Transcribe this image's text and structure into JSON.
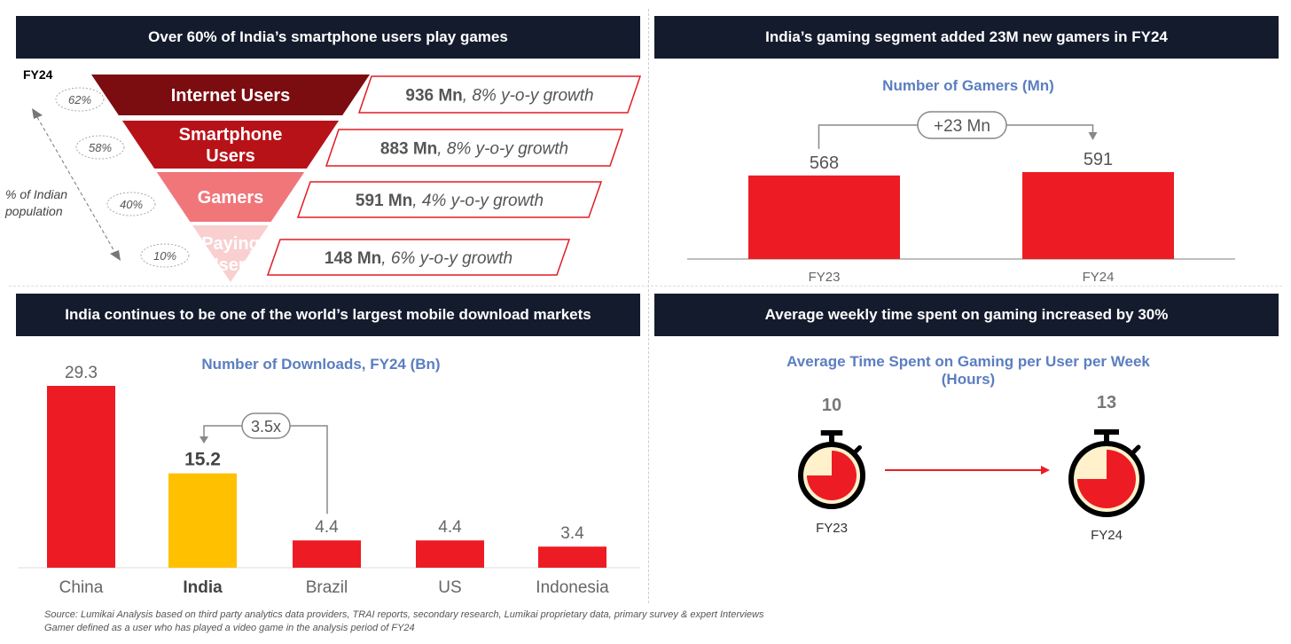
{
  "panels": {
    "top_left": {
      "header": "Over 60% of India’s smartphone users play games",
      "year_label": "FY24",
      "axis_label": "% of Indian population"
    },
    "top_right": {
      "header": "India’s gaming segment added 23M new gamers in FY24"
    },
    "bottom_left": {
      "header": "India continues to be one of the world’s largest mobile download markets"
    },
    "bottom_right": {
      "header": "Average weekly time spent on gaming increased by 30%"
    }
  },
  "funnel": [
    {
      "label1": "Internet Users",
      "label2": "",
      "pct": "62%",
      "value": "936 Mn",
      "growth": ", 8% y-o-y growth",
      "color": "#7b0c10"
    },
    {
      "label1": "Smartphone",
      "label2": "Users",
      "pct": "58%",
      "value": "883 Mn",
      "growth": ", 8% y-o-y growth",
      "color": "#b81219"
    },
    {
      "label1": "Gamers",
      "label2": "",
      "pct": "40%",
      "value": "591 Mn",
      "growth": ", 4% y-o-y growth",
      "color": "#f0767a"
    },
    {
      "label1": "Paying",
      "label2": "Users",
      "pct": "10%",
      "value": "148 Mn",
      "growth": ", 6% y-o-y growth",
      "color": "#f9cfcf"
    }
  ],
  "chart_data": [
    {
      "type": "bar",
      "title": "Number of Gamers (Mn)",
      "categories": [
        "FY23",
        "FY24"
      ],
      "values": [
        568,
        591
      ],
      "annotation": "+23 Mn",
      "color": "#ed1c24"
    },
    {
      "type": "bar",
      "title": "Number of Downloads, FY24 (Bn)",
      "categories": [
        "China",
        "India",
        "Brazil",
        "US",
        "Indonesia"
      ],
      "values": [
        29.3,
        15.2,
        4.4,
        4.4,
        3.4
      ],
      "highlight": "India",
      "annotation": "3.5x",
      "color": "#ed1c24",
      "highlight_color": "#ffc000"
    },
    {
      "type": "pie",
      "title": "Average Time Spent on Gaming per User per Week (Hours)",
      "categories": [
        "FY23",
        "FY24"
      ],
      "values": [
        10,
        13
      ]
    }
  ],
  "footer": {
    "source": "Source: Lumikai Analysis based on third party analytics data providers, TRAI reports, secondary research, Lumikai proprietary data, primary survey & expert Interviews",
    "note": "Gamer defined as a user who has played a video game in the analysis period of FY24"
  }
}
